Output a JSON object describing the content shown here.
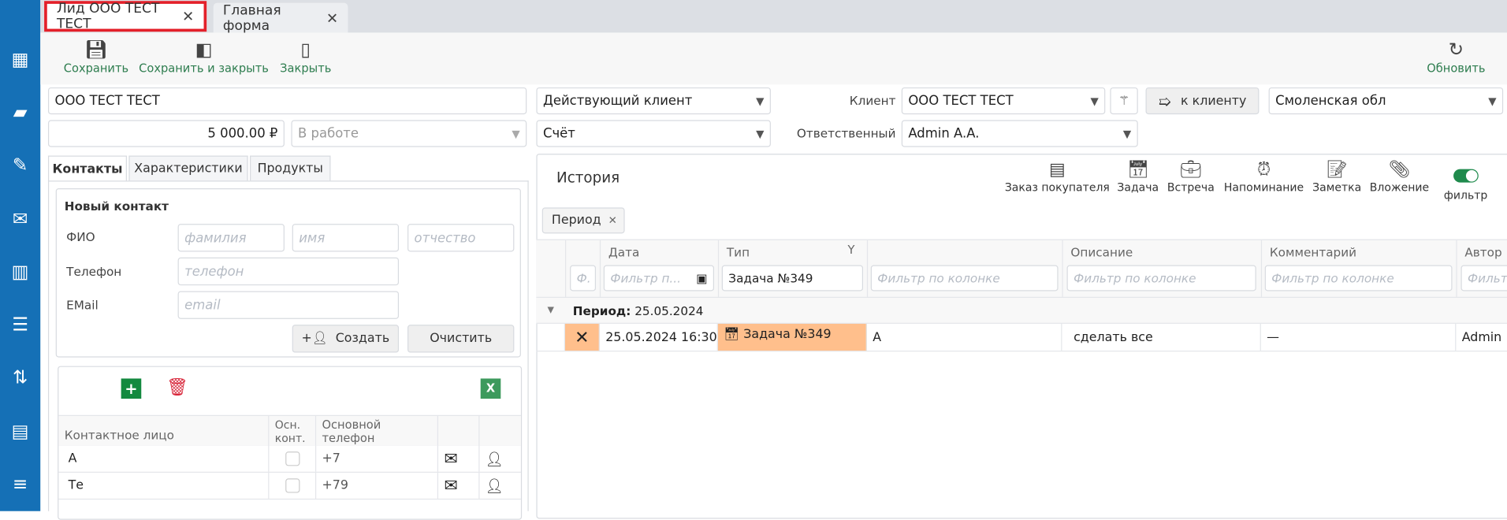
{
  "tabs": [
    {
      "label": "Лид ООО ТЕСТ ТЕСТ",
      "active": true
    },
    {
      "label": "Главная форма",
      "active": false
    }
  ],
  "toolbar": {
    "save": "Сохранить",
    "save_close": "Сохранить и закрыть",
    "close": "Закрыть",
    "refresh": "Обновить"
  },
  "header": {
    "name": "ООО ТЕСТ ТЕСТ",
    "status_client": "Действующий клиент",
    "client_label": "Клиент",
    "client": "ООО ТЕСТ ТЕСТ",
    "to_client": "к клиенту",
    "region": "Смоленская обл",
    "amount": "5 000.00 ₽",
    "stage": "В работе",
    "doc_type": "Счёт",
    "responsible_label": "Ответственный",
    "responsible": "Admin A.A."
  },
  "left_tabs": [
    "Контакты",
    "Характеристики",
    "Продукты"
  ],
  "new_contact": {
    "title": "Новый контакт",
    "fio_label": "ФИО",
    "phone_label": "Телефон",
    "email_label": "EMail",
    "ph_last": "фамилия",
    "ph_first": "имя",
    "ph_middle": "отчество",
    "ph_phone": "телефон",
    "ph_email": "email",
    "create": "Создать",
    "clear": "Очистить"
  },
  "contacts_grid": {
    "excel": "X",
    "headers": [
      "Контактное лицо",
      "Осн. конт.",
      "Основной телефон"
    ],
    "rows": [
      {
        "name": "А",
        "phone": "+7"
      },
      {
        "name": "Те",
        "phone": "+79"
      }
    ]
  },
  "history": {
    "title": "История",
    "actions": [
      "Заказ покупателя",
      "Задача",
      "Встреча",
      "Напоминание",
      "Заметка",
      "Вложение"
    ],
    "filter_toggle": "фильтр",
    "chip": "Период",
    "columns": [
      "Дата",
      "Тип",
      "",
      "Описание",
      "Комментарий",
      "Автор"
    ],
    "filters": {
      "action": "Ф.",
      "date": "Фильтр п...",
      "type": "Задача №349",
      "blank": "Фильтр по колонке",
      "desc": "Фильтр по колонке",
      "comment": "Фильтр по колонке",
      "author": "Фильт"
    },
    "group_label": "Период:",
    "group_value": "25.05.2024",
    "row": {
      "date": "25.05.2024 16:30",
      "type": "Задача №349",
      "col3": "А",
      "desc": "сделать все",
      "comment": "—",
      "author": "Admin"
    }
  },
  "colors": {
    "sidebar": "#1570b6",
    "accent_green": "#2e7d4f",
    "highlight": "#ffbf8c",
    "active_tab_border": "#e3202a"
  }
}
